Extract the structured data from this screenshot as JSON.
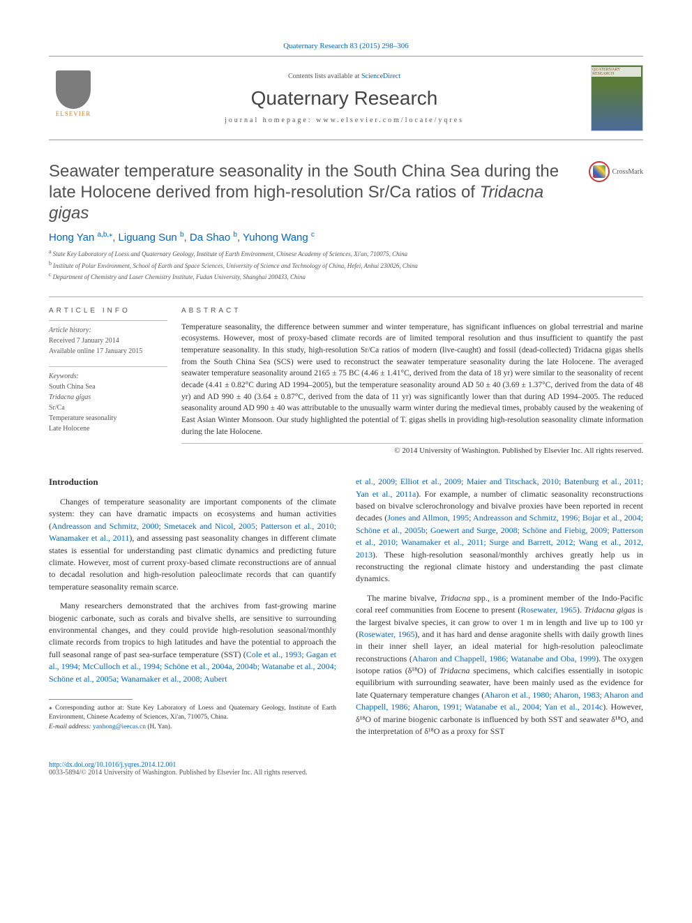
{
  "top_ref": "Quaternary Research 83 (2015) 298–306",
  "masthead": {
    "contents_prefix": "Contents lists available at ",
    "contents_link": "ScienceDirect",
    "journal_name": "Quaternary Research",
    "homepage_prefix": "journal homepage: ",
    "homepage_url": "www.elsevier.com/locate/yqres",
    "elsevier_label": "ELSEVIER",
    "cover_label": "QUATERNARY RESEARCH"
  },
  "crossmark_label": "CrossMark",
  "title_pre": "Seawater temperature seasonality in the South China Sea during the late Holocene derived from high-resolution Sr/Ca ratios of ",
  "title_italic": "Tridacna gigas",
  "authors": [
    {
      "name": "Hong Yan",
      "sup": "a,b,",
      "corr": true
    },
    {
      "name": "Liguang Sun",
      "sup": "b"
    },
    {
      "name": "Da Shao",
      "sup": "b"
    },
    {
      "name": "Yuhong Wang",
      "sup": "c"
    }
  ],
  "affiliations": [
    {
      "sup": "a",
      "text": "State Key Laboratory of Loess and Quaternary Geology, Institute of Earth Environment, Chinese Academy of Sciences, Xi'an, 710075, China"
    },
    {
      "sup": "b",
      "text": "Institute of Polar Environment, School of Earth and Space Sciences, University of Science and Technology of China, Hefei, Anhui 230026, China"
    },
    {
      "sup": "c",
      "text": "Department of Chemistry and Laser Chemistry Institute, Fudan University, Shanghai 200433, China"
    }
  ],
  "info": {
    "head": "ARTICLE INFO",
    "history_label": "Article history:",
    "received": "Received 7 January 2014",
    "available": "Available online 17 January 2015",
    "keywords_label": "Keywords:",
    "keywords": [
      "South China Sea",
      "Tridacna gigas",
      "Sr/Ca",
      "Temperature seasonality",
      "Late Holocene"
    ]
  },
  "abstract": {
    "head": "ABSTRACT",
    "text": "Temperature seasonality, the difference between summer and winter temperature, has significant influences on global terrestrial and marine ecosystems. However, most of proxy-based climate records are of limited temporal resolution and thus insufficient to quantify the past temperature seasonality. In this study, high-resolution Sr/Ca ratios of modern (live-caught) and fossil (dead-collected) Tridacna gigas shells from the South China Sea (SCS) were used to reconstruct the seawater temperature seasonality during the late Holocene. The averaged seawater temperature seasonality around 2165 ± 75 BC (4.46 ± 1.41°C, derived from the data of 18 yr) were similar to the seasonality of recent decade (4.41 ± 0.82°C during AD 1994–2005), but the temperature seasonality around AD 50 ± 40 (3.69 ± 1.37°C, derived from the data of 48 yr) and AD 990 ± 40 (3.64 ± 0.87°C, derived from the data of 11 yr) was significantly lower than that during AD 1994–2005. The reduced seasonality around AD 990 ± 40 was attributable to the unusually warm winter during the medieval times, probably caused by the weakening of East Asian Winter Monsoon. Our study highlighted the potential of T. gigas shells in providing high-resolution seasonality climate information during the late Holocene.",
    "copyright": "© 2014 University of Washington. Published by Elsevier Inc. All rights reserved."
  },
  "body": {
    "intro_head": "Introduction",
    "p1_a": "Changes of temperature seasonality are important components of the climate system: they can have dramatic impacts on ecosystems and human activities (",
    "p1_cite1": "Andreasson and Schmitz, 2000; Smetacek and Nicol, 2005; Patterson et al., 2010; Wanamaker et al., 2011",
    "p1_b": "), and assessing past seasonality changes in different climate states is essential for understanding past climatic dynamics and predicting future climate. However, most of current proxy-based climate reconstructions are of annual to decadal resolution and high-resolution paleoclimate records that can quantify temperature seasonality remain scarce.",
    "p2_a": "Many researchers demonstrated that the archives from fast-growing marine biogenic carbonate, such as corals and bivalve shells, are sensitive to surrounding environmental changes, and they could provide high-resolution seasonal/monthly climate records from tropics to high latitudes and have the potential to approach the full seasonal range of past sea-surface temperature (SST) (",
    "p2_cite1": "Cole et al., 1993; Gagan et al., 1994; McCulloch et al., 1994; Schöne et al., 2004a, 2004b; Watanabe et al., 2004; Schöne et al., 2005a; Wanamaker et al., 2008; Aubert",
    "p3_cite_cont": "et al., 2009; Elliot et al., 2009; Maier and Titschack, 2010; Batenburg et al., 2011; Yan et al., 2011a",
    "p3_a": "). For example, a number of climatic seasonality reconstructions based on bivalve sclerochronology and bivalve proxies have been reported in recent decades (",
    "p3_cite2": "Jones and Allmon, 1995; Andreasson and Schmitz, 1996; Bojar et al., 2004; Schöne et al., 2005b; Goewert and Surge, 2008; Schöne and Fiebig, 2009; Patterson et al., 2010; Wanamaker et al., 2011; Surge and Barrett, 2012; Wang et al., 2012, 2013",
    "p3_b": "). These high-resolution seasonal/monthly archives greatly help us in reconstructing the regional climate history and understanding the past climate dynamics.",
    "p4_a": "The marine bivalve, ",
    "p4_it1": "Tridacna",
    "p4_b": " spp., is a prominent member of the Indo-Pacific coral reef communities from Eocene to present (",
    "p4_cite1": "Rosewater, 1965",
    "p4_c": "). ",
    "p4_it2": "Tridacna gigas",
    "p4_d": " is the largest bivalve species, it can grow to over 1 m in length and live up to 100 yr (",
    "p4_cite2": "Rosewater, 1965",
    "p4_e": "), and it has hard and dense aragonite shells with daily growth lines in their inner shell layer, an ideal material for high-resolution paleoclimate reconstructions (",
    "p4_cite3": "Aharon and Chappell, 1986; Watanabe and Oba, 1999",
    "p4_f": "). The oxygen isotope ratios (δ¹⁸O) of ",
    "p4_it3": "Tridacna",
    "p4_g": " specimens, which calcifies essentially in isotopic equilibrium with surrounding seawater, have been mainly used as the evidence for late Quaternary temperature changes (",
    "p4_cite4": "Aharon et al., 1980; Aharon, 1983; Aharon and Chappell, 1986; Aharon, 1991; Watanabe et al., 2004; Yan et al., 2014c",
    "p4_h": "). However, δ¹⁸O of marine biogenic carbonate is influenced by both SST and seawater δ¹⁸O, and the interpretation of δ¹⁸O as a proxy for SST"
  },
  "footnote": {
    "corr": "⁎  Corresponding author at: State Key Laboratory of Loess and Quaternary Geology, Institute of Earth Environment, Chinese Academy of Sciences, Xi'an, 710075, China.",
    "email_label": "E-mail address: ",
    "email": "yanhong@ieecas.cn",
    "email_who": " (H. Yan)."
  },
  "footer": {
    "doi": "http://dx.doi.org/10.1016/j.yqres.2014.12.001",
    "issn": "0033-5894/© 2014 University of Washington. Published by Elsevier Inc. All rights reserved."
  },
  "colors": {
    "link": "#0066cc",
    "elsevier_orange": "#e67a1a",
    "text": "#333333",
    "heading_gray": "#505050",
    "rule": "#aaaaaa"
  }
}
